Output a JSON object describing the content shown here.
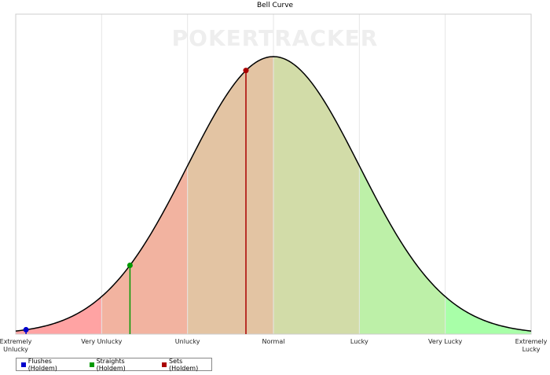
{
  "chart_data": {
    "type": "bell",
    "title": "Bell Curve",
    "watermark": "POKERTRACKER",
    "xlim": [
      -3,
      3
    ],
    "ylim": [
      0,
      0.46
    ],
    "xticks": [
      {
        "value": -3,
        "label": "Extremely Unlucky"
      },
      {
        "value": -2,
        "label": "Very Unlucky"
      },
      {
        "value": -1,
        "label": "Unlucky"
      },
      {
        "value": 0,
        "label": "Normal"
      },
      {
        "value": 1,
        "label": "Lucky"
      },
      {
        "value": 2,
        "label": "Very Lucky"
      },
      {
        "value": 3,
        "label": "Extremely Lucky"
      }
    ],
    "band_colors": [
      "#ffa3a3",
      "#f2b3a0",
      "#e3c4a3",
      "#d2dca8",
      "#bdf0a8",
      "#a8ffa8"
    ],
    "grid": true,
    "legend": "bottom-left",
    "series": [
      {
        "name": "Flushes (Holdem)",
        "color": "#0000cc",
        "x": -2.88
      },
      {
        "name": "Straights (Holdem)",
        "color": "#009900",
        "x": -1.67
      },
      {
        "name": "Sets (Holdem)",
        "color": "#aa0000",
        "x": -0.32
      }
    ]
  }
}
